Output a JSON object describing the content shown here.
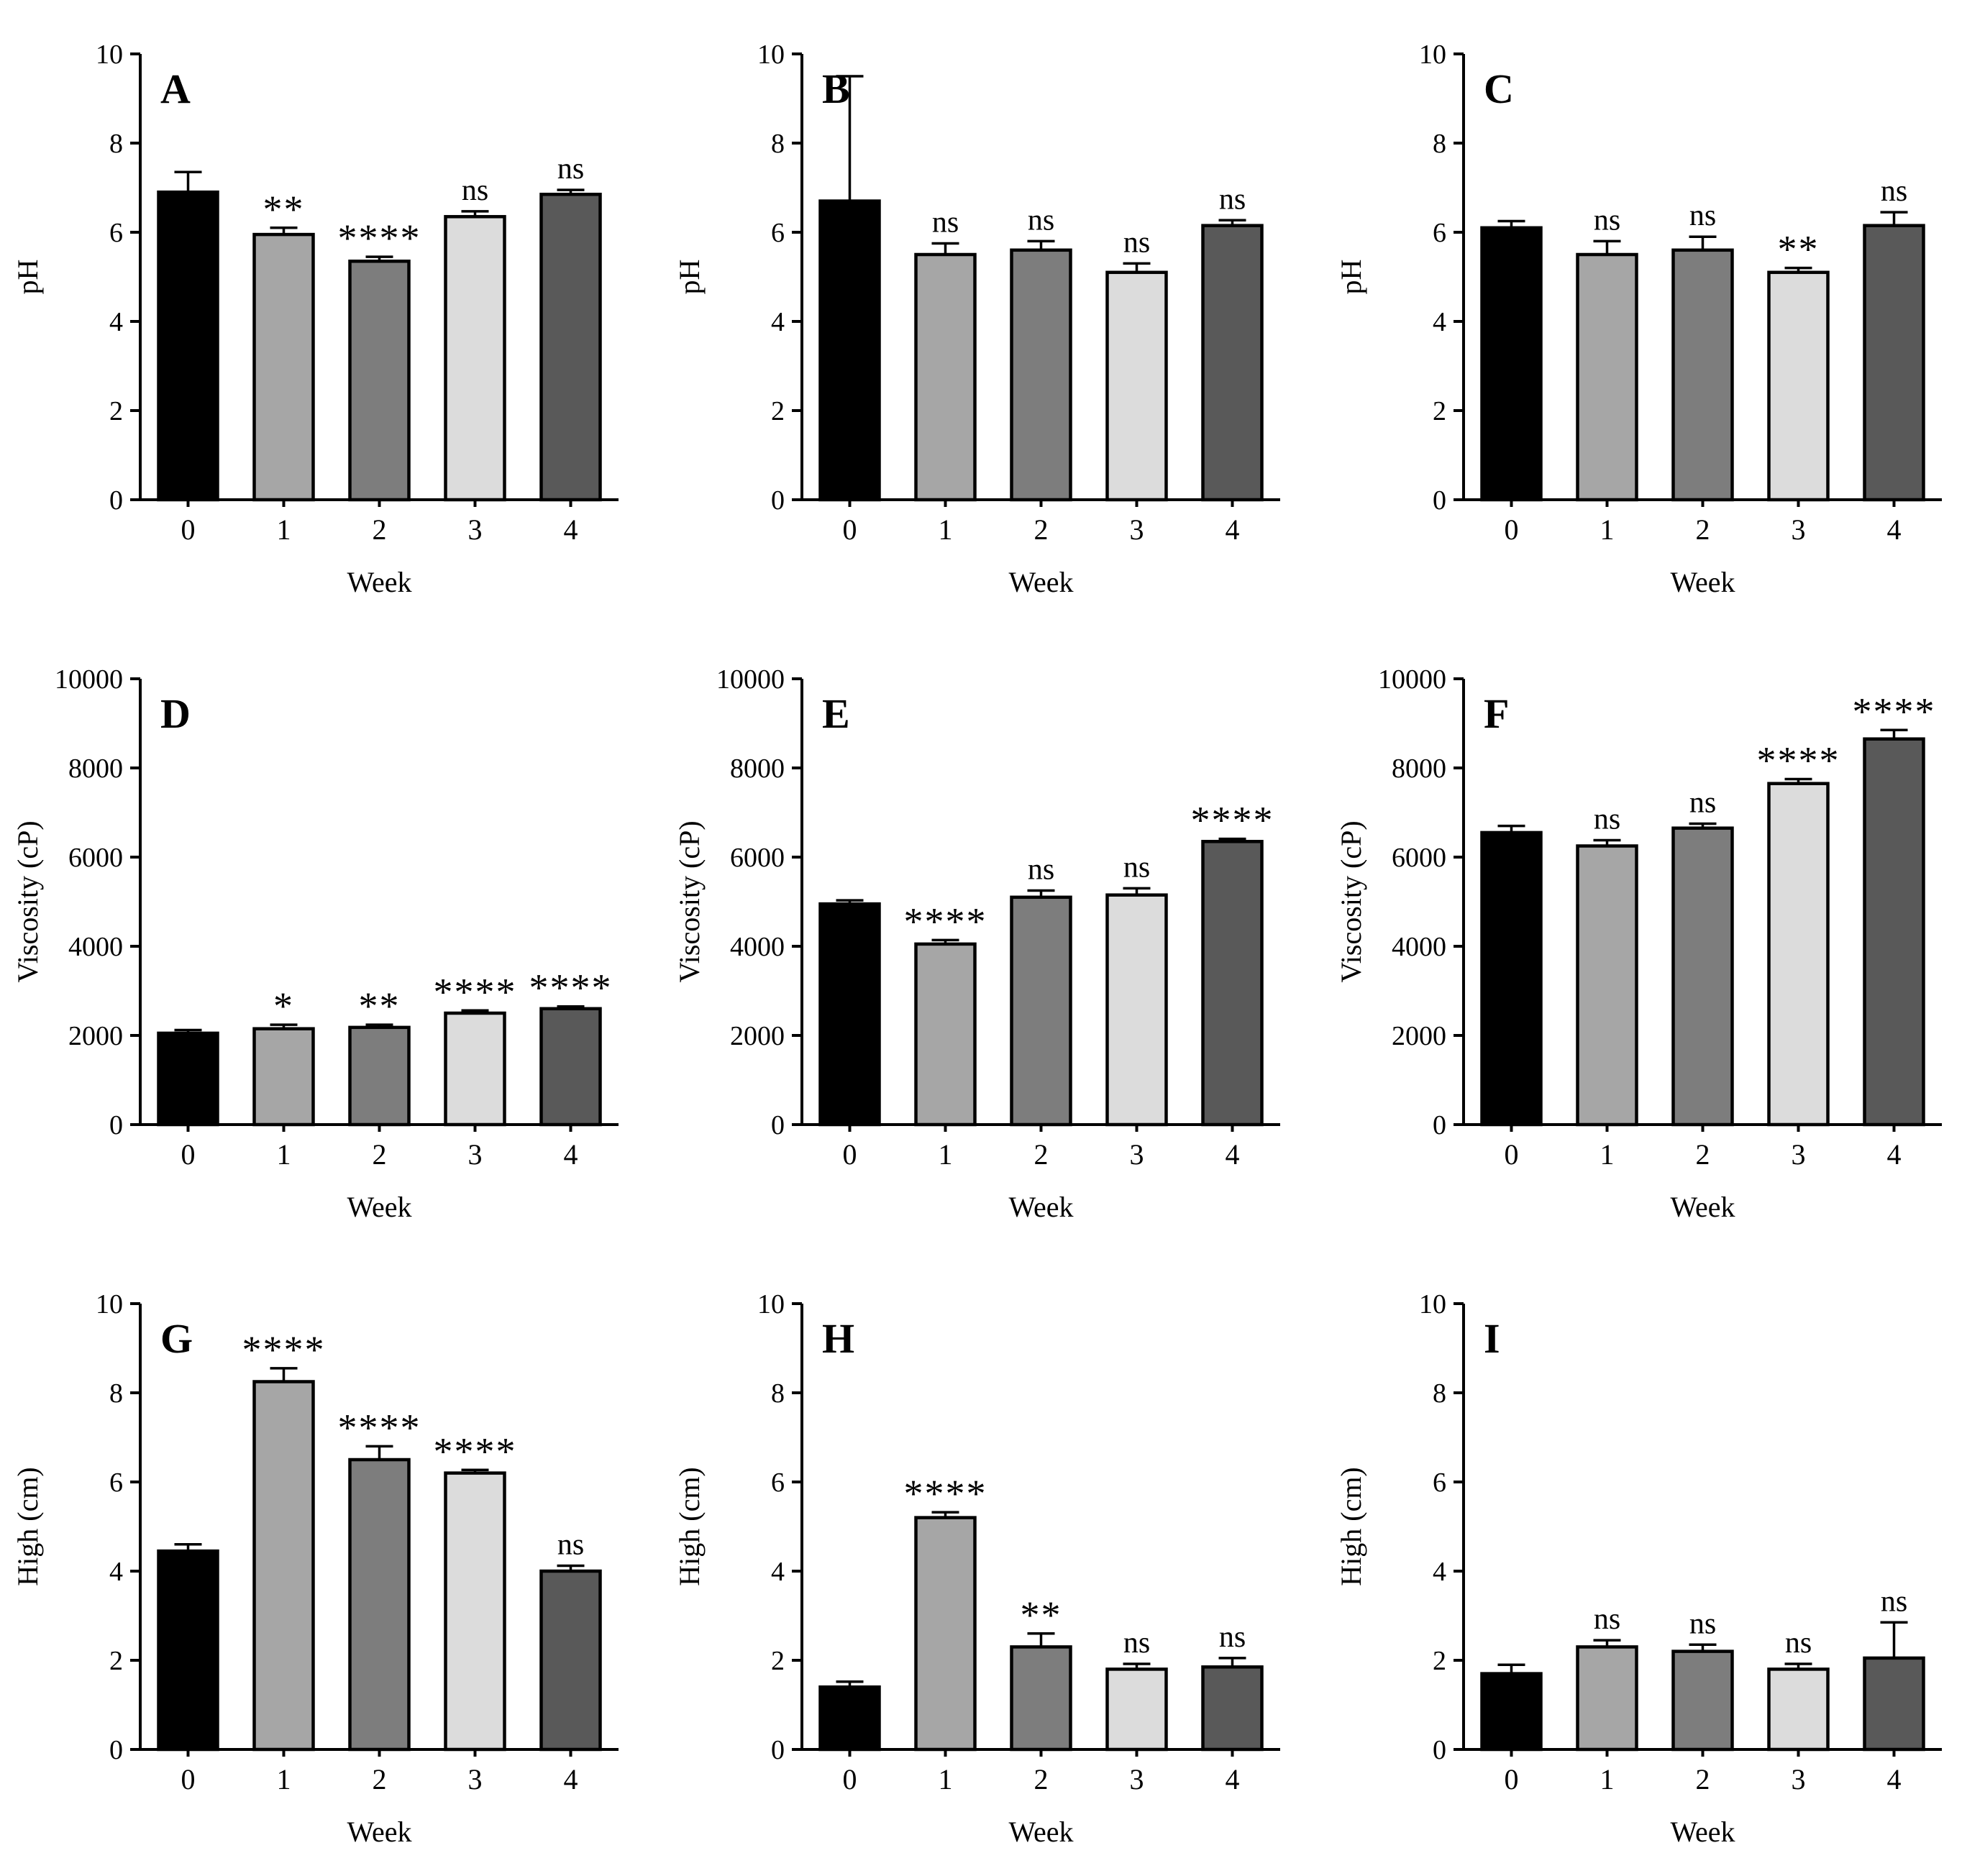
{
  "figure": {
    "background": "#ffffff",
    "bar_colors": [
      "#000000",
      "#a6a6a6",
      "#7d7d7d",
      "#dcdcdc",
      "#595959"
    ],
    "bar_outline_color": "#000000",
    "axis_color": "#000000"
  },
  "chart_data": [
    {
      "type": "bar",
      "panel": "A",
      "title": "A",
      "ylabel": "pH",
      "xlabel": "Week",
      "categories": [
        "0",
        "1",
        "2",
        "3",
        "4"
      ],
      "values": [
        6.9,
        5.95,
        5.35,
        6.35,
        6.85
      ],
      "errors": [
        0.45,
        0.15,
        0.1,
        0.12,
        0.1
      ],
      "annotations": [
        "",
        "**",
        "****",
        "ns",
        "ns"
      ],
      "ylim": [
        0,
        10
      ],
      "yticks": [
        0,
        2,
        4,
        6,
        8,
        10
      ],
      "grid": false,
      "legend": "none"
    },
    {
      "type": "bar",
      "panel": "B",
      "title": "B",
      "ylabel": "pH",
      "xlabel": "Week",
      "categories": [
        "0",
        "1",
        "2",
        "3",
        "4"
      ],
      "values": [
        6.7,
        5.5,
        5.6,
        5.1,
        6.15
      ],
      "errors": [
        2.8,
        0.25,
        0.2,
        0.2,
        0.12
      ],
      "annotations": [
        "",
        "ns",
        "ns",
        "ns",
        "ns"
      ],
      "ylim": [
        0,
        10
      ],
      "yticks": [
        0,
        2,
        4,
        6,
        8,
        10
      ],
      "grid": false,
      "legend": "none"
    },
    {
      "type": "bar",
      "panel": "C",
      "title": "C",
      "ylabel": "pH",
      "xlabel": "Week",
      "categories": [
        "0",
        "1",
        "2",
        "3",
        "4"
      ],
      "values": [
        6.1,
        5.5,
        5.6,
        5.1,
        6.15
      ],
      "errors": [
        0.15,
        0.3,
        0.3,
        0.1,
        0.3
      ],
      "annotations": [
        "",
        "ns",
        "ns",
        "**",
        "ns"
      ],
      "ylim": [
        0,
        10
      ],
      "yticks": [
        0,
        2,
        4,
        6,
        8,
        10
      ],
      "grid": false,
      "legend": "none"
    },
    {
      "type": "bar",
      "panel": "D",
      "title": "D",
      "ylabel": "Viscosity (cP)",
      "xlabel": "Week",
      "categories": [
        "0",
        "1",
        "2",
        "3",
        "4"
      ],
      "values": [
        2050,
        2150,
        2180,
        2500,
        2600
      ],
      "errors": [
        70,
        90,
        60,
        60,
        50
      ],
      "annotations": [
        "",
        "*",
        "**",
        "****",
        "****"
      ],
      "ylim": [
        0,
        10000
      ],
      "yticks": [
        0,
        2000,
        4000,
        6000,
        8000,
        10000
      ],
      "grid": false,
      "legend": "none"
    },
    {
      "type": "bar",
      "panel": "E",
      "title": "E",
      "ylabel": "Viscosity (cP)",
      "xlabel": "Week",
      "categories": [
        "0",
        "1",
        "2",
        "3",
        "4"
      ],
      "values": [
        4950,
        4050,
        5100,
        5150,
        6350
      ],
      "errors": [
        80,
        90,
        150,
        150,
        60
      ],
      "annotations": [
        "",
        "****",
        "ns",
        "ns",
        "****"
      ],
      "ylim": [
        0,
        10000
      ],
      "yticks": [
        0,
        2000,
        4000,
        6000,
        8000,
        10000
      ],
      "grid": false,
      "legend": "none"
    },
    {
      "type": "bar",
      "panel": "F",
      "title": "F",
      "ylabel": "Viscosity (cP)",
      "xlabel": "Week",
      "categories": [
        "0",
        "1",
        "2",
        "3",
        "4"
      ],
      "values": [
        6550,
        6250,
        6650,
        7650,
        8650
      ],
      "errors": [
        150,
        130,
        100,
        100,
        200
      ],
      "annotations": [
        "",
        "ns",
        "ns",
        "****",
        "****"
      ],
      "ylim": [
        0,
        10000
      ],
      "yticks": [
        0,
        2000,
        4000,
        6000,
        8000,
        10000
      ],
      "grid": false,
      "legend": "none"
    },
    {
      "type": "bar",
      "panel": "G",
      "title": "G",
      "ylabel": "High (cm)",
      "xlabel": "Week",
      "categories": [
        "0",
        "1",
        "2",
        "3",
        "4"
      ],
      "values": [
        4.45,
        8.25,
        6.5,
        6.2,
        4.0
      ],
      "errors": [
        0.15,
        0.3,
        0.3,
        0.07,
        0.12
      ],
      "annotations": [
        "",
        "****",
        "****",
        "****",
        "ns"
      ],
      "ylim": [
        0,
        10
      ],
      "yticks": [
        0,
        2,
        4,
        6,
        8,
        10
      ],
      "grid": false,
      "legend": "none"
    },
    {
      "type": "bar",
      "panel": "H",
      "title": "H",
      "ylabel": "High (cm)",
      "xlabel": "Week",
      "categories": [
        "0",
        "1",
        "2",
        "3",
        "4"
      ],
      "values": [
        1.4,
        5.2,
        2.3,
        1.8,
        1.85
      ],
      "errors": [
        0.12,
        0.12,
        0.3,
        0.12,
        0.2
      ],
      "annotations": [
        "",
        "****",
        "**",
        "ns",
        "ns"
      ],
      "ylim": [
        0,
        10
      ],
      "yticks": [
        0,
        2,
        4,
        6,
        8,
        10
      ],
      "grid": false,
      "legend": "none"
    },
    {
      "type": "bar",
      "panel": "I",
      "title": "I",
      "ylabel": "High (cm)",
      "xlabel": "Week",
      "categories": [
        "0",
        "1",
        "2",
        "3",
        "4"
      ],
      "values": [
        1.7,
        2.3,
        2.2,
        1.8,
        2.05
      ],
      "errors": [
        0.2,
        0.15,
        0.15,
        0.12,
        0.8
      ],
      "annotations": [
        "",
        "ns",
        "ns",
        "ns",
        "ns"
      ],
      "ylim": [
        0,
        10
      ],
      "yticks": [
        0,
        2,
        4,
        6,
        8,
        10
      ],
      "grid": false,
      "legend": "none"
    }
  ]
}
